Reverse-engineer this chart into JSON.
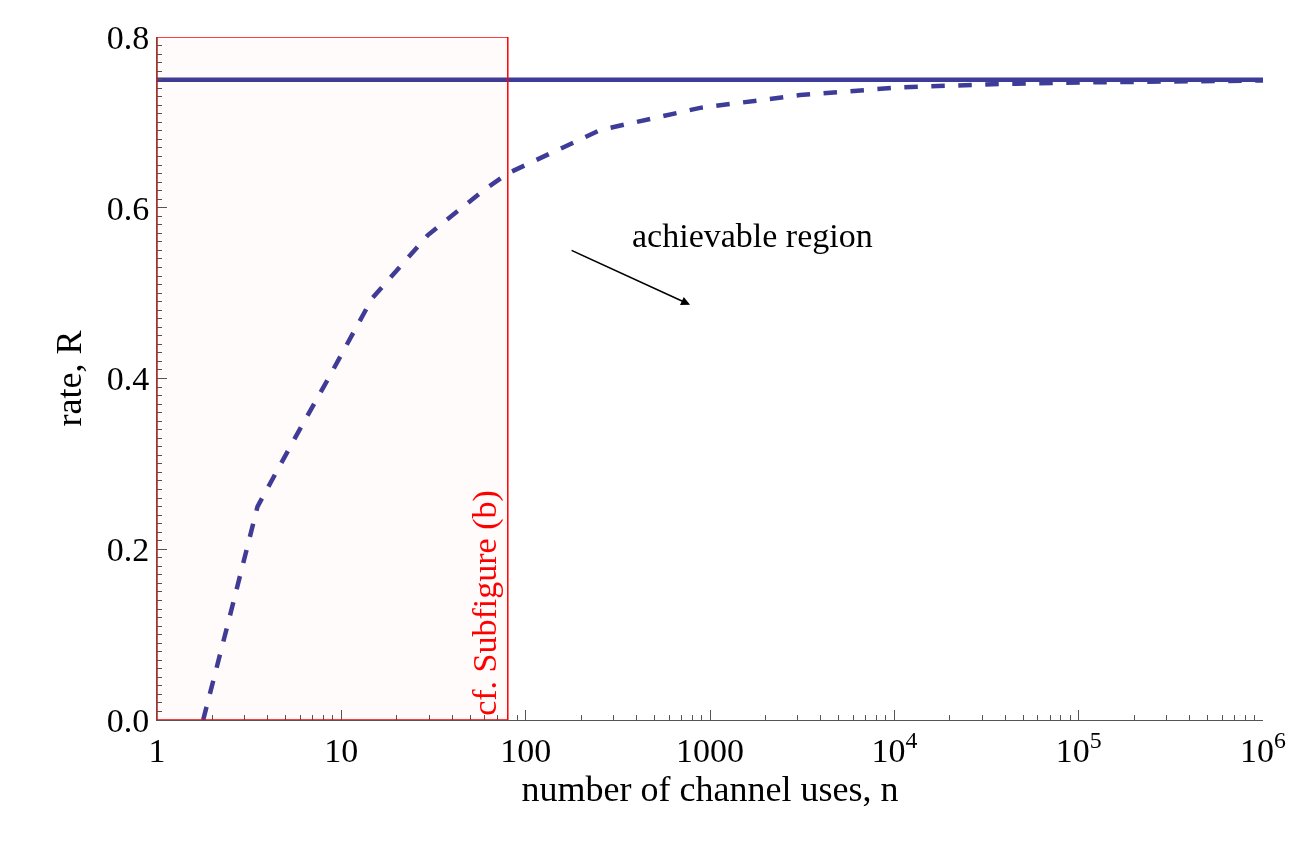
{
  "chart_data": {
    "type": "line",
    "xlabel": "number of channel uses, n",
    "ylabel": "rate, R",
    "log": "x",
    "xlim": [
      1,
      1000000
    ],
    "ylim": [
      0,
      0.8
    ],
    "xticks": [
      1,
      10,
      100,
      1000,
      {
        "value": 10000,
        "label": "10$^{4}$"
      },
      {
        "value": 100000,
        "label": "10$^{5}$"
      },
      {
        "value": 1000000,
        "label": "10$^{6}$"
      }
    ],
    "yticks": [
      {
        "value": 0,
        "label": "0.0"
      },
      {
        "value": 0.2,
        "label": "0.2"
      },
      {
        "value": 0.4,
        "label": "0.4"
      },
      {
        "value": 0.6,
        "label": "0.6"
      },
      {
        "value": 0.8,
        "label": "0.8"
      }
    ],
    "series": [
      {
        "color": "#3d3d99",
        "line_style": "solid",
        "x": [
          1,
          1000000
        ],
        "values": [
          0.75,
          0.75
        ]
      },
      {
        "color": "#3d3d99",
        "line_style": "dashed",
        "x": [
          1.78,
          2.42,
          3.51,
          5.56,
          8.45,
          14.7,
          29.5,
          58.7,
          79.6,
          253,
          884,
          3080,
          10700,
          37400,
          130600,
          1000000
        ],
        "values": [
          0,
          0.112,
          0.25,
          0.329,
          0.399,
          0.494,
          0.568,
          0.62,
          0.64,
          0.691,
          0.717,
          0.732,
          0.741,
          0.745,
          0.747,
          0.749
        ]
      }
    ],
    "bands": [
      {
        "axis": "x",
        "from": 1,
        "to": 80,
        "label": "cf. Subfigure (b)",
        "color": "#ff0000"
      }
    ],
    "annotations": [
      "achievable region"
    ]
  }
}
